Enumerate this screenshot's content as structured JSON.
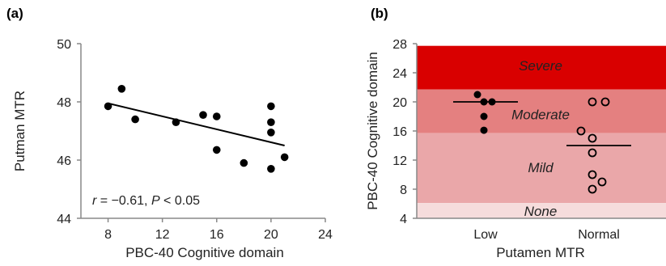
{
  "chart_data": [
    {
      "type": "scatter",
      "panel_label": "(a)",
      "title": "",
      "xlabel": "PBC-40 Cognitive domain",
      "ylabel": "Putman MTR",
      "xlim": [
        6,
        24
      ],
      "ylim": [
        44,
        50
      ],
      "xticks": [
        8,
        12,
        16,
        20,
        24
      ],
      "yticks": [
        44,
        46,
        48,
        50
      ],
      "points": [
        {
          "x": 8,
          "y": 47.85
        },
        {
          "x": 9,
          "y": 48.45
        },
        {
          "x": 10,
          "y": 47.4
        },
        {
          "x": 13,
          "y": 47.3
        },
        {
          "x": 15,
          "y": 47.55
        },
        {
          "x": 16,
          "y": 47.5
        },
        {
          "x": 16,
          "y": 46.35
        },
        {
          "x": 18,
          "y": 45.9
        },
        {
          "x": 20,
          "y": 47.85
        },
        {
          "x": 20,
          "y": 47.3
        },
        {
          "x": 20,
          "y": 46.95
        },
        {
          "x": 20,
          "y": 45.7
        },
        {
          "x": 21,
          "y": 46.1
        }
      ],
      "regression_line": {
        "x1": 8,
        "y1": 47.95,
        "x2": 21,
        "y2": 46.5
      },
      "annotation": {
        "r_symbol": "r",
        "r_text": " = −0.61, ",
        "p_symbol": "P",
        "p_text": " < 0.05"
      }
    },
    {
      "type": "scatter",
      "panel_label": "(b)",
      "title": "",
      "xlabel": "Putamen MTR",
      "ylabel": "PBC-40 Cognitive domain",
      "categories": [
        "Low",
        "Normal"
      ],
      "ylim": [
        4,
        28
      ],
      "yticks": [
        4,
        8,
        12,
        16,
        20,
        24,
        28
      ],
      "zones": [
        {
          "label": "Severe",
          "from": 21.7,
          "to": 27.7,
          "color": "#d90000"
        },
        {
          "label": "Moderate",
          "from": 15.7,
          "to": 21.7,
          "color": "#e48080"
        },
        {
          "label": "Mild",
          "from": 6.1,
          "to": 15.7,
          "color": "#eaa7a9"
        },
        {
          "label": "None",
          "from": 4,
          "to": 6.1,
          "color": "#f6dcdc"
        }
      ],
      "zone_label_positions": [
        25,
        18.3,
        11,
        5
      ],
      "series": [
        {
          "category": "Low",
          "marker": "filled",
          "points": [
            {
              "offset": -0.25,
              "y": 21
            },
            {
              "offset": -0.05,
              "y": 20
            },
            {
              "offset": 0.2,
              "y": 20
            },
            {
              "offset": -0.05,
              "y": 18
            },
            {
              "offset": -0.05,
              "y": 16.1
            }
          ],
          "mean": 20
        },
        {
          "category": "Normal",
          "marker": "open",
          "points": [
            {
              "offset": -0.2,
              "y": 20
            },
            {
              "offset": 0.2,
              "y": 20
            },
            {
              "offset": -0.55,
              "y": 16
            },
            {
              "offset": -0.2,
              "y": 15
            },
            {
              "offset": -0.2,
              "y": 13
            },
            {
              "offset": -0.2,
              "y": 10
            },
            {
              "offset": 0.1,
              "y": 9
            },
            {
              "offset": -0.2,
              "y": 8
            }
          ],
          "mean": 14
        }
      ]
    }
  ]
}
